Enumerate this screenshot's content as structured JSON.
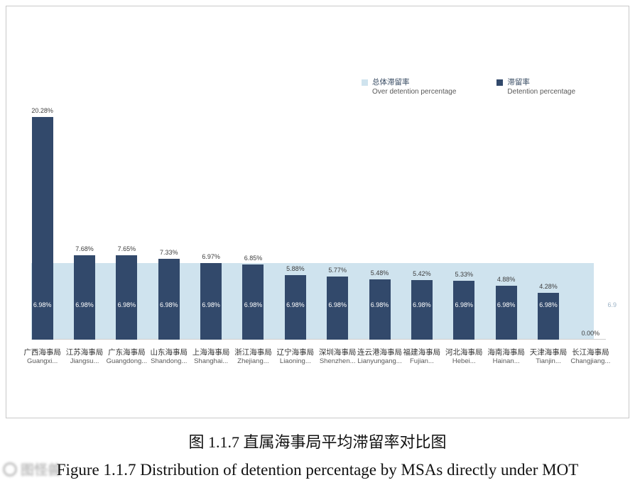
{
  "legend": {
    "overall": {
      "label_zh": "总体滞留率",
      "label_en": "Over detention percentage",
      "color": "#cfe3ee"
    },
    "detention": {
      "label_zh": "滞留率",
      "label_en": "Detention percentage",
      "color": "#32496b"
    }
  },
  "chart_data": {
    "type": "bar",
    "title": "图 1.1.7 直属海事局平均滞留率对比图",
    "xlabel": "",
    "ylabel": "",
    "ylim": [
      0,
      21
    ],
    "grid": false,
    "legend_position": "top-right",
    "categories": [
      {
        "zh": "广西海事局",
        "en": "Guangxi..."
      },
      {
        "zh": "江苏海事局",
        "en": "Jiangsu..."
      },
      {
        "zh": "广东海事局",
        "en": "Guangdong..."
      },
      {
        "zh": "山东海事局",
        "en": "Shandong..."
      },
      {
        "zh": "上海海事局",
        "en": "Shanghai..."
      },
      {
        "zh": "浙江海事局",
        "en": "Zhejiang..."
      },
      {
        "zh": "辽宁海事局",
        "en": "Liaoning..."
      },
      {
        "zh": "深圳海事局",
        "en": "Shenzhen..."
      },
      {
        "zh": "连云港海事局",
        "en": "Lianyungang..."
      },
      {
        "zh": "福建海事局",
        "en": "Fujian..."
      },
      {
        "zh": "河北海事局",
        "en": "Hebei..."
      },
      {
        "zh": "海南海事局",
        "en": "Hainan..."
      },
      {
        "zh": "天津海事局",
        "en": "Tianjin..."
      },
      {
        "zh": "长江海事局",
        "en": "Changjiang..."
      }
    ],
    "series": [
      {
        "name": "滞留率 Detention percentage",
        "type": "bar",
        "color": "#32496b",
        "values": [
          20.28,
          7.68,
          7.65,
          7.33,
          6.97,
          6.85,
          5.88,
          5.77,
          5.48,
          5.42,
          5.33,
          4.88,
          4.28,
          0.0
        ],
        "labels": [
          "20.28%",
          "7.68%",
          "7.65%",
          "7.33%",
          "6.97%",
          "6.85%",
          "5.88%",
          "5.77%",
          "5.48%",
          "5.42%",
          "5.33%",
          "4.88%",
          "4.28%",
          "0.00%"
        ]
      },
      {
        "name": "总体滞留率 Over detention percentage",
        "type": "area",
        "color": "#cfe3ee",
        "value": 6.98,
        "label": "6.98%"
      }
    ],
    "right_edge_partial_label": "6.9"
  },
  "captions": {
    "title_zh": "图 1.1.7 直属海事局平均滞留率对比图",
    "caption_en": "Figure 1.1.7 Distribution of detention percentage by MSAs directly under MOT"
  },
  "watermark": {
    "text": "图怪兽"
  }
}
